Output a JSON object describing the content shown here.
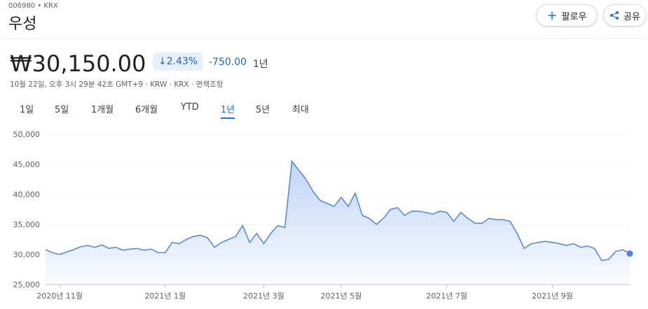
{
  "header": {
    "ticker": "006980 • KRX",
    "name": "우성",
    "follow": "팔로우",
    "share": "공유"
  },
  "price": {
    "value": "₩30,150.00",
    "change_pct": "2.43%",
    "change": "-750.00",
    "period": "1년",
    "timestamp": "10월 22일, 오후 3시 29분 42초 GMT+9 · KRW · KRX · 면책조항"
  },
  "tabs": [
    "1일",
    "5일",
    "1개월",
    "6개월",
    "YTD",
    "1년",
    "5년",
    "최대"
  ],
  "selected_tab": 5,
  "chart_data": {
    "type": "line",
    "color": "#4b86e6",
    "grid": true,
    "categories": [
      null,
      null,
      "2020년 11월",
      null,
      null,
      null,
      null,
      null,
      null,
      null,
      null,
      null,
      null,
      null,
      null,
      null,
      null,
      "2021년 1월",
      null,
      null,
      null,
      null,
      null,
      null,
      null,
      null,
      null,
      null,
      null,
      null,
      null,
      "2021년 3월",
      null,
      null,
      null,
      null,
      null,
      null,
      null,
      null,
      null,
      null,
      "2021년 5월",
      null,
      null,
      null,
      null,
      null,
      null,
      null,
      null,
      null,
      null,
      null,
      null,
      null,
      null,
      "2021년 7월",
      null,
      null,
      null,
      null,
      null,
      null,
      null,
      null,
      null,
      null,
      null,
      null,
      null,
      null,
      "2021년 9월",
      null,
      null,
      null,
      null,
      null,
      null,
      null,
      null,
      null,
      null,
      null
    ],
    "values": [
      30800,
      30300,
      30000,
      30400,
      30800,
      31300,
      31500,
      31200,
      31600,
      31000,
      31200,
      30700,
      30900,
      31000,
      30700,
      30900,
      30300,
      30300,
      32000,
      31800,
      32500,
      33000,
      33200,
      32800,
      31200,
      32000,
      32500,
      33000,
      34800,
      32000,
      33500,
      31800,
      33500,
      34800,
      34500,
      45500,
      44000,
      42500,
      40500,
      39000,
      38500,
      38000,
      39500,
      38000,
      40200,
      36500,
      36000,
      35000,
      36000,
      37500,
      37800,
      36500,
      37200,
      37200,
      37000,
      36700,
      37200,
      37000,
      35500,
      37000,
      36000,
      35200,
      35200,
      36000,
      35800,
      35800,
      35500,
      33500,
      31000,
      31800,
      32000,
      32200,
      32000,
      31800,
      31500,
      31800,
      31200,
      31400,
      31000,
      29000,
      29200,
      30500,
      30800,
      30150
    ],
    "ylim": [
      25000,
      50000
    ],
    "yticks": [
      {
        "value": 25000,
        "label": "25,000"
      },
      {
        "value": 30000,
        "label": "30,000"
      },
      {
        "value": 35000,
        "label": "35,000"
      },
      {
        "value": 40000,
        "label": "40,000"
      },
      {
        "value": 45000,
        "label": "45,000"
      },
      {
        "value": 50000,
        "label": "50,000"
      }
    ]
  }
}
